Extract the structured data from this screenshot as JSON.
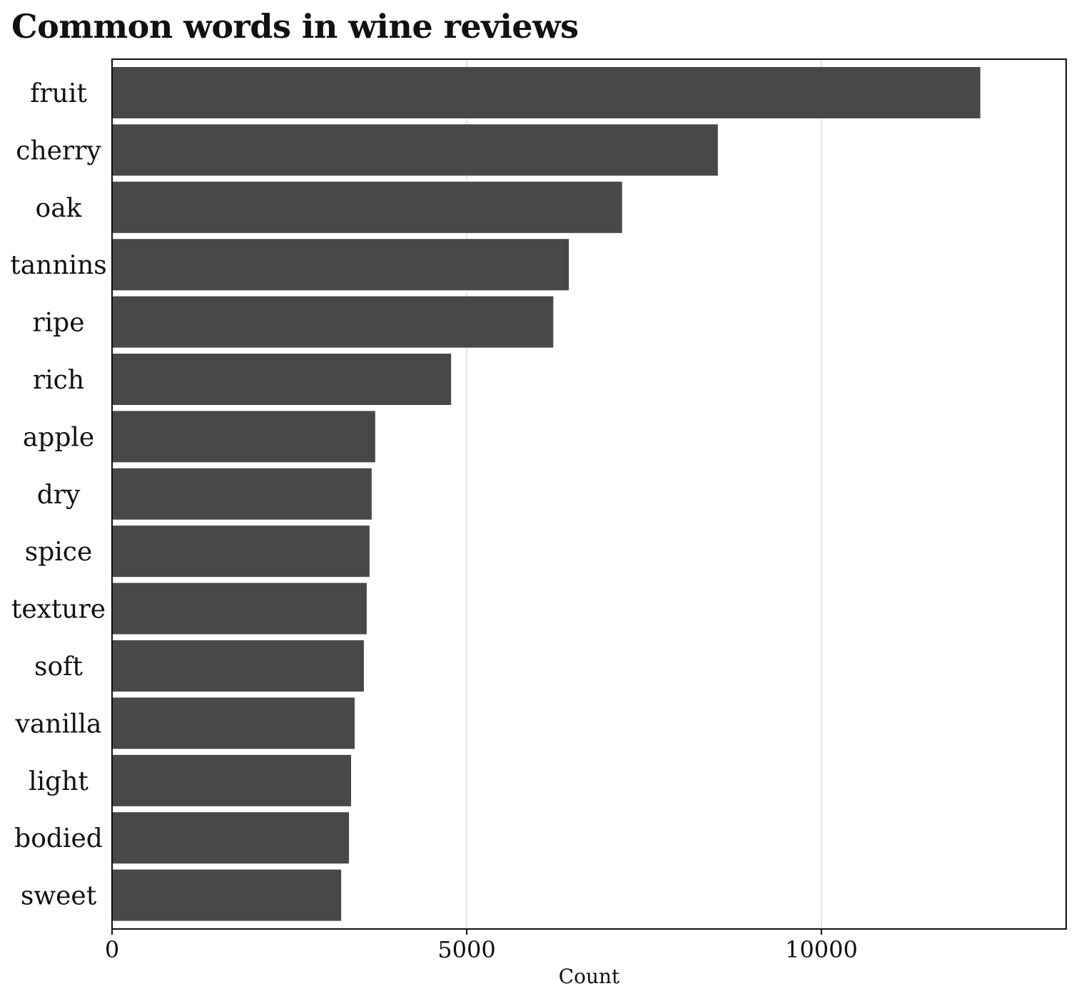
{
  "chart_data": {
    "type": "bar",
    "orientation": "horizontal",
    "title": "Common words in wine reviews",
    "xlabel": "Count",
    "ylabel": "",
    "categories": [
      "fruit",
      "cherry",
      "oak",
      "tannins",
      "ripe",
      "rich",
      "apple",
      "dry",
      "spice",
      "texture",
      "soft",
      "vanilla",
      "light",
      "bodied",
      "sweet"
    ],
    "values": [
      12240,
      8540,
      7190,
      6440,
      6220,
      4780,
      3710,
      3660,
      3630,
      3590,
      3550,
      3420,
      3370,
      3340,
      3230
    ],
    "xlim": [
      0,
      13450
    ],
    "xticks": [
      0,
      5000,
      10000
    ],
    "xtick_labels": [
      "0",
      "5000",
      "10000"
    ],
    "bar_color": "#484848",
    "grid": "vertical lines only",
    "gridline_color": "#dddddd",
    "legend": "none"
  }
}
